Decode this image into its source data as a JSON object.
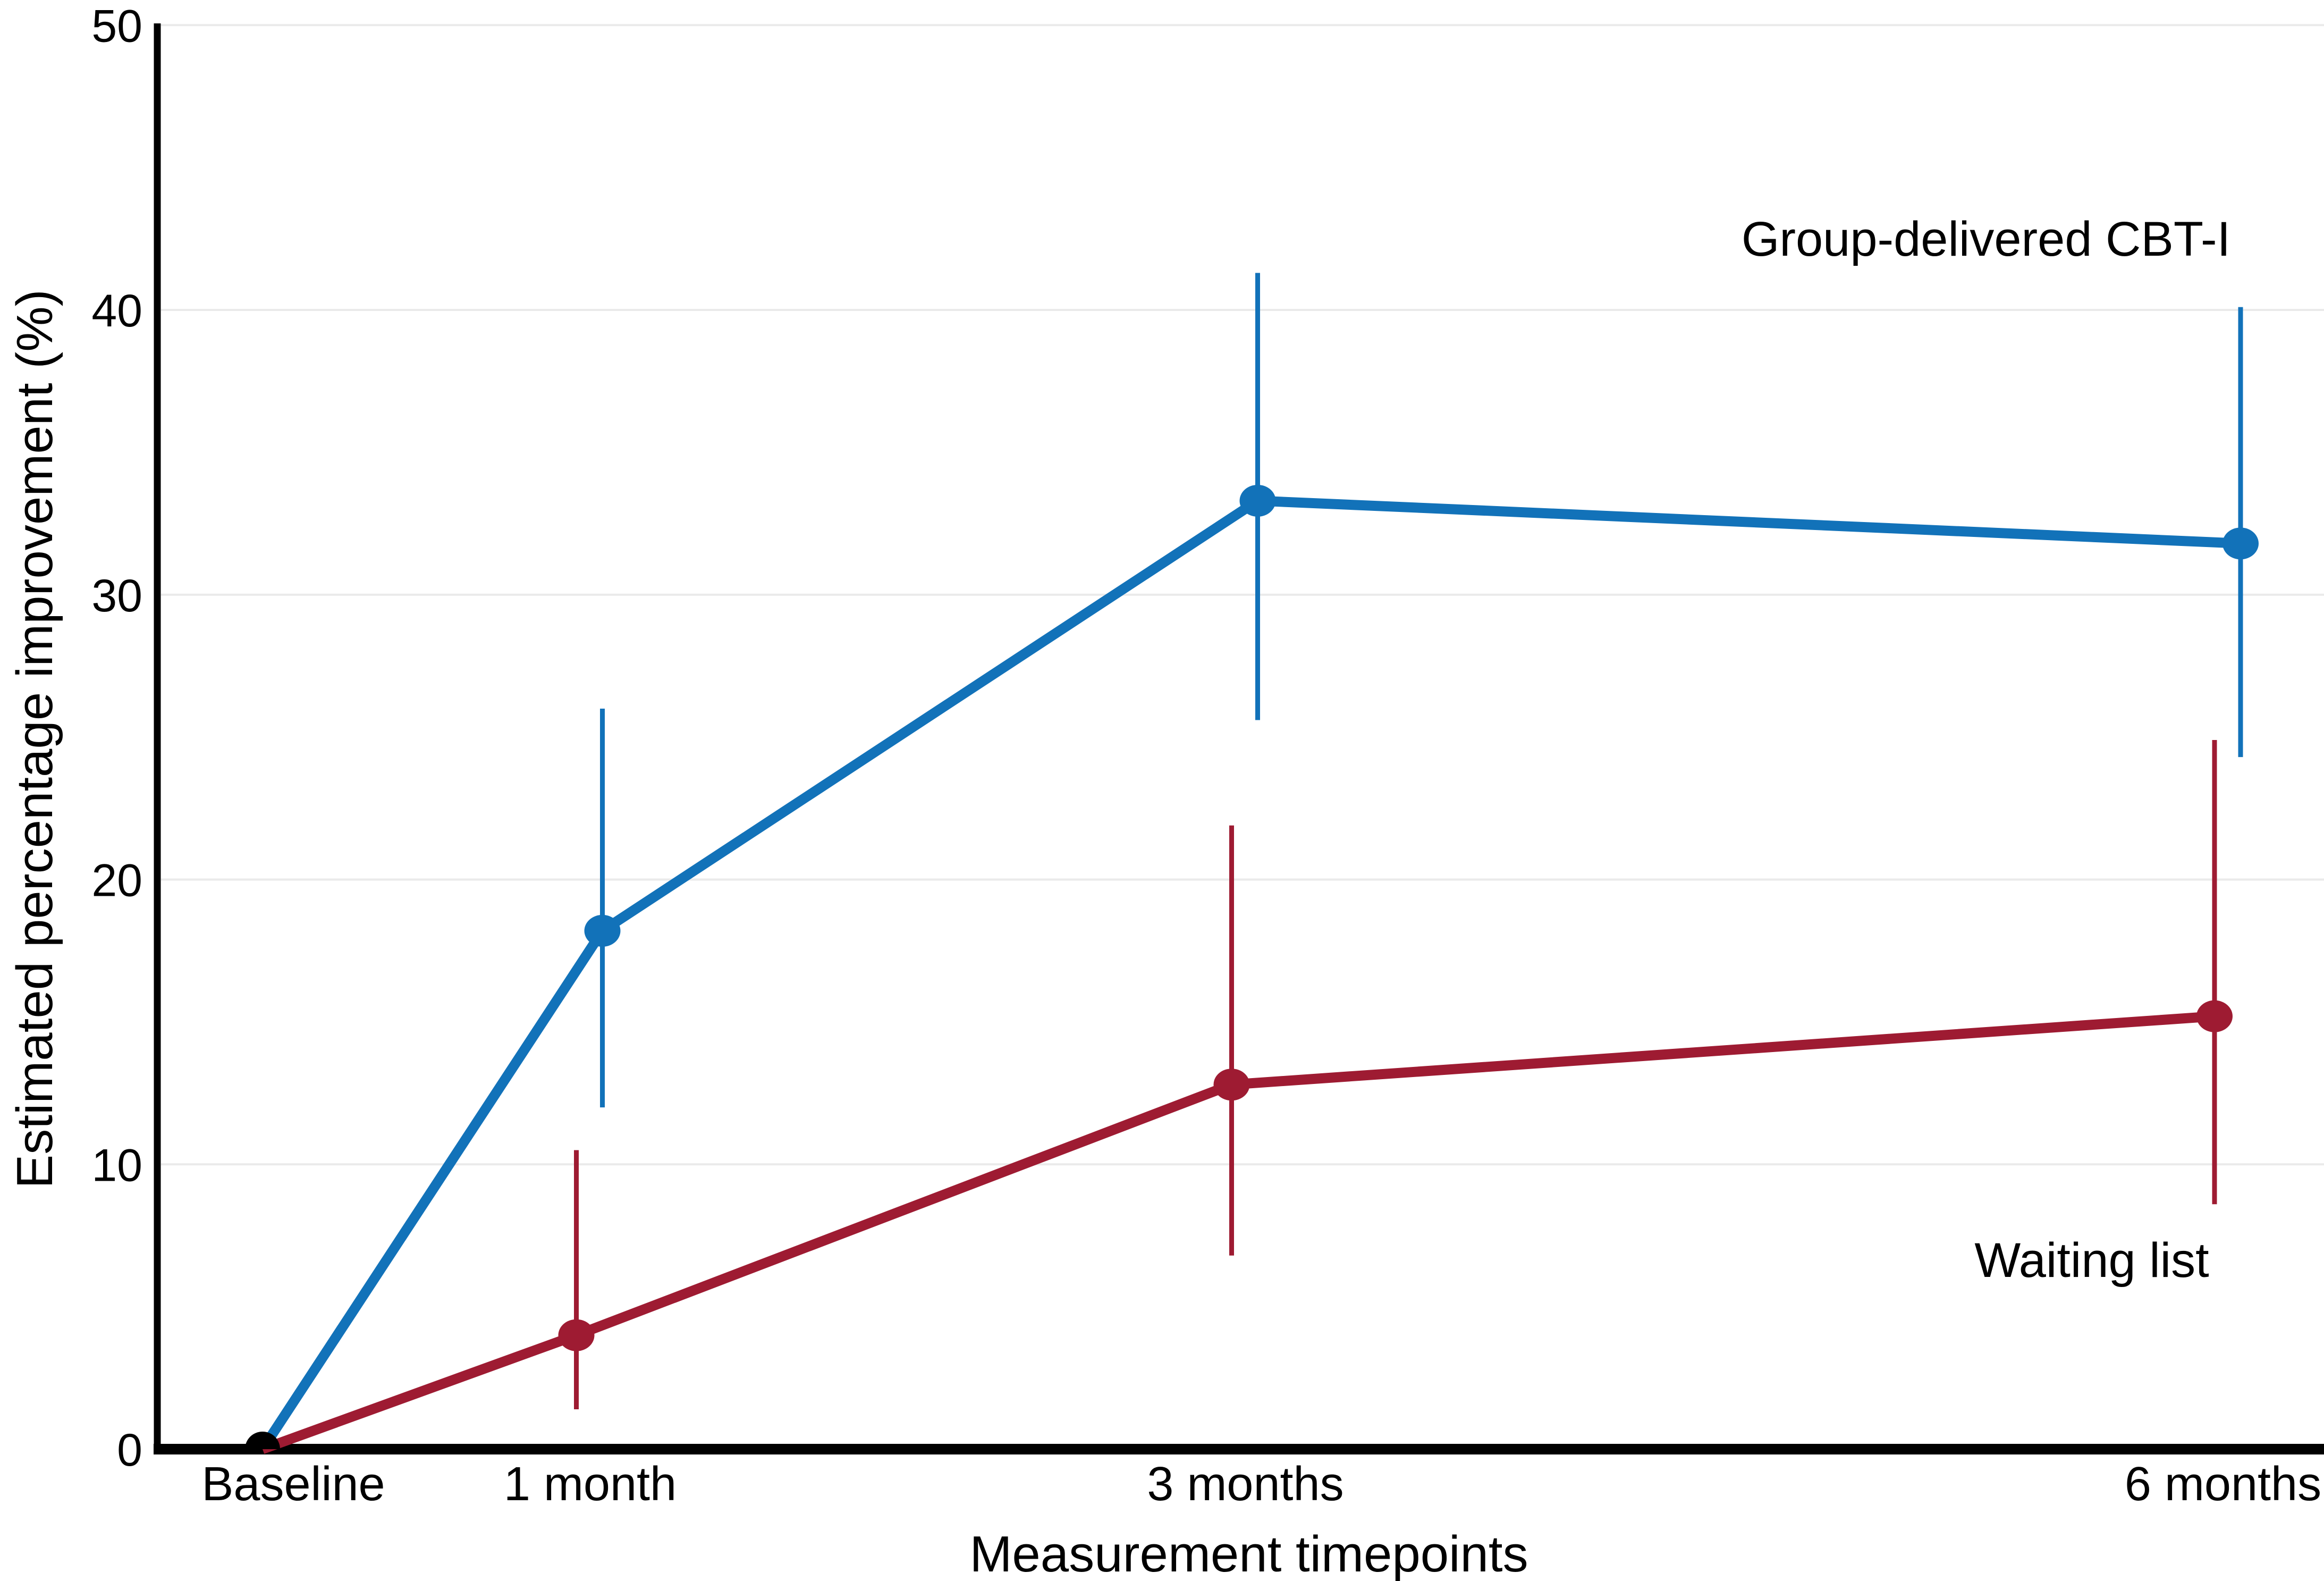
{
  "chart_data": {
    "type": "line",
    "title": "",
    "xlabel": "Measurement timepoints",
    "ylabel": "Estimated percentage improvement (%)",
    "x_categories": [
      "Baseline",
      "1 month",
      "3 months",
      "6 months"
    ],
    "x_months": [
      0,
      1,
      3,
      6
    ],
    "ylim": [
      0,
      50
    ],
    "yticks": [
      0,
      10,
      20,
      30,
      40,
      50
    ],
    "ytick_labels": [
      "0",
      "10",
      "20",
      "30",
      "40",
      "50"
    ],
    "grid": "horizontal",
    "legend_position": "inline-annotations",
    "baseline_marker_color": "#000000",
    "gridline_color": "#eaeaea",
    "axis_color": "#000000",
    "series": [
      {
        "label": "Group-delivered CBT-I",
        "color": "#1272b9",
        "values": [
          0,
          18.2,
          33.3,
          31.8
        ],
        "ci_low": [
          null,
          12.0,
          25.6,
          24.3
        ],
        "ci_high": [
          null,
          26.0,
          41.3,
          40.1
        ]
      },
      {
        "label": "Waiting list",
        "color": "#9e1b32",
        "values": [
          0,
          4.0,
          12.8,
          15.2
        ],
        "ci_low": [
          null,
          1.4,
          6.8,
          8.6
        ],
        "ci_high": [
          null,
          10.5,
          21.9,
          24.9
        ]
      }
    ]
  }
}
